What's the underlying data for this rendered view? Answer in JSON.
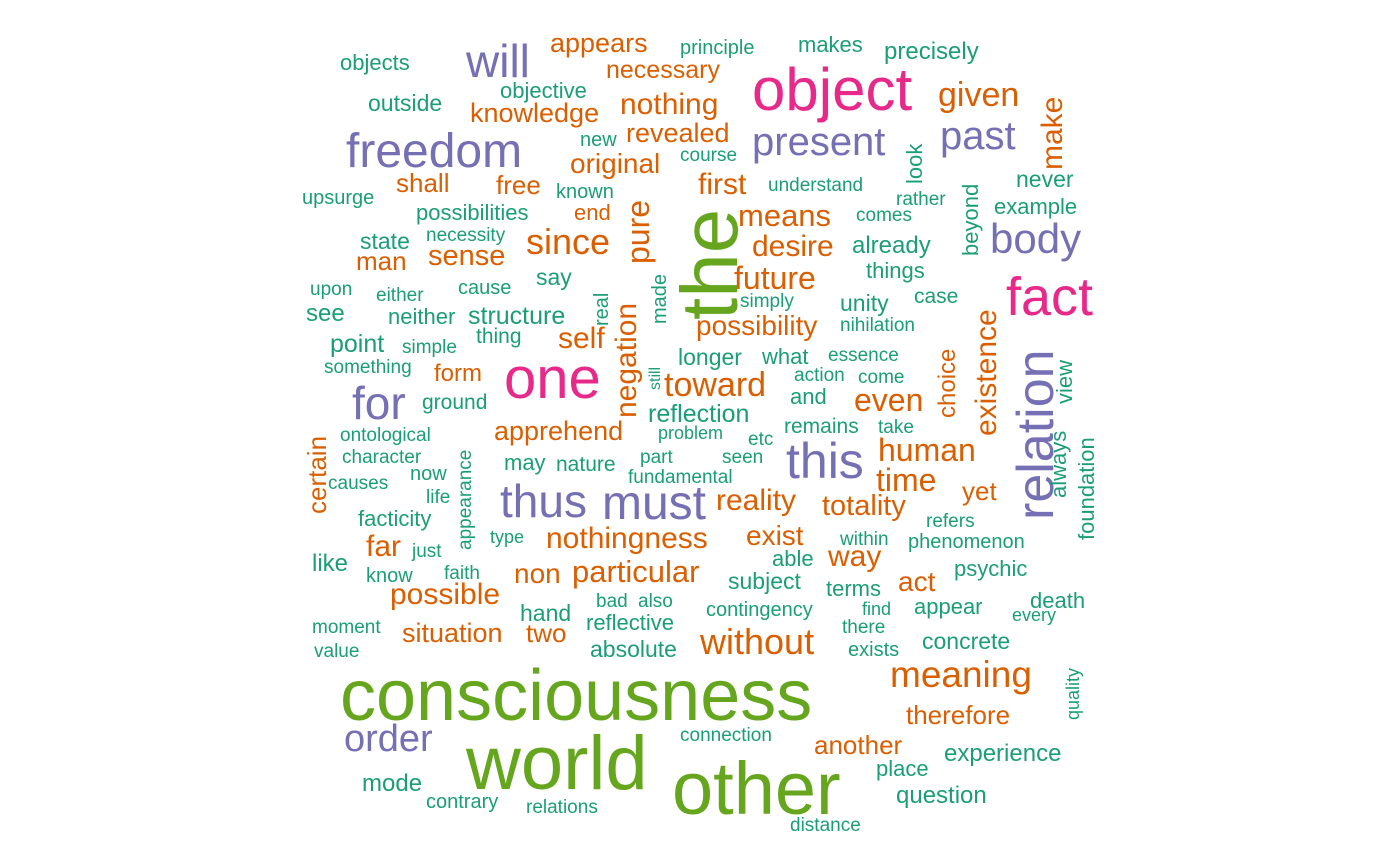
{
  "palette": {
    "teal": "#1b9e77",
    "orange": "#d95f02",
    "purple": "#7570b3",
    "pink": "#e7298a",
    "green": "#66a61e"
  },
  "words": [
    {
      "text": "consciousness",
      "color": "green"
    },
    {
      "text": "world",
      "color": "green"
    },
    {
      "text": "other",
      "color": "green"
    },
    {
      "text": "the",
      "color": "green"
    },
    {
      "text": "object",
      "color": "pink"
    },
    {
      "text": "fact",
      "color": "pink"
    },
    {
      "text": "one",
      "color": "pink"
    },
    {
      "text": "will",
      "color": "purple"
    },
    {
      "text": "freedom",
      "color": "purple"
    },
    {
      "text": "present",
      "color": "purple"
    },
    {
      "text": "past",
      "color": "purple"
    },
    {
      "text": "body",
      "color": "purple"
    },
    {
      "text": "relation",
      "color": "purple"
    },
    {
      "text": "this",
      "color": "purple"
    },
    {
      "text": "for",
      "color": "purple"
    },
    {
      "text": "thus",
      "color": "purple"
    },
    {
      "text": "must",
      "color": "purple"
    },
    {
      "text": "order",
      "color": "purple"
    },
    {
      "text": "appears",
      "color": "orange"
    },
    {
      "text": "necessary",
      "color": "orange"
    },
    {
      "text": "given",
      "color": "orange"
    },
    {
      "text": "make",
      "color": "orange"
    },
    {
      "text": "nothing",
      "color": "orange"
    },
    {
      "text": "knowledge",
      "color": "orange"
    },
    {
      "text": "revealed",
      "color": "orange"
    },
    {
      "text": "original",
      "color": "orange"
    },
    {
      "text": "shall",
      "color": "orange"
    },
    {
      "text": "free",
      "color": "orange"
    },
    {
      "text": "first",
      "color": "orange"
    },
    {
      "text": "end",
      "color": "orange"
    },
    {
      "text": "pure",
      "color": "orange"
    },
    {
      "text": "means",
      "color": "orange"
    },
    {
      "text": "since",
      "color": "orange"
    },
    {
      "text": "desire",
      "color": "orange"
    },
    {
      "text": "man",
      "color": "orange"
    },
    {
      "text": "sense",
      "color": "orange"
    },
    {
      "text": "future",
      "color": "orange"
    },
    {
      "text": "possibility",
      "color": "orange"
    },
    {
      "text": "self",
      "color": "orange"
    },
    {
      "text": "existence",
      "color": "orange"
    },
    {
      "text": "form",
      "color": "orange"
    },
    {
      "text": "negation",
      "color": "orange"
    },
    {
      "text": "toward",
      "color": "orange"
    },
    {
      "text": "even",
      "color": "orange"
    },
    {
      "text": "choice",
      "color": "orange"
    },
    {
      "text": "certain",
      "color": "orange"
    },
    {
      "text": "apprehend",
      "color": "orange"
    },
    {
      "text": "human",
      "color": "orange"
    },
    {
      "text": "time",
      "color": "orange"
    },
    {
      "text": "yet",
      "color": "orange"
    },
    {
      "text": "reality",
      "color": "orange"
    },
    {
      "text": "totality",
      "color": "orange"
    },
    {
      "text": "exist",
      "color": "orange"
    },
    {
      "text": "nothingness",
      "color": "orange"
    },
    {
      "text": "far",
      "color": "orange"
    },
    {
      "text": "way",
      "color": "orange"
    },
    {
      "text": "particular",
      "color": "orange"
    },
    {
      "text": "non",
      "color": "orange"
    },
    {
      "text": "act",
      "color": "orange"
    },
    {
      "text": "possible",
      "color": "orange"
    },
    {
      "text": "situation",
      "color": "orange"
    },
    {
      "text": "two",
      "color": "orange"
    },
    {
      "text": "without",
      "color": "orange"
    },
    {
      "text": "meaning",
      "color": "orange"
    },
    {
      "text": "therefore",
      "color": "orange"
    },
    {
      "text": "another",
      "color": "orange"
    },
    {
      "text": "objects",
      "color": "teal"
    },
    {
      "text": "principle",
      "color": "teal"
    },
    {
      "text": "makes",
      "color": "teal"
    },
    {
      "text": "precisely",
      "color": "teal"
    },
    {
      "text": "outside",
      "color": "teal"
    },
    {
      "text": "objective",
      "color": "teal"
    },
    {
      "text": "new",
      "color": "teal"
    },
    {
      "text": "course",
      "color": "teal"
    },
    {
      "text": "look",
      "color": "teal"
    },
    {
      "text": "upsurge",
      "color": "teal"
    },
    {
      "text": "known",
      "color": "teal"
    },
    {
      "text": "understand",
      "color": "teal"
    },
    {
      "text": "rather",
      "color": "teal"
    },
    {
      "text": "never",
      "color": "teal"
    },
    {
      "text": "possibilities",
      "color": "teal"
    },
    {
      "text": "comes",
      "color": "teal"
    },
    {
      "text": "beyond",
      "color": "teal"
    },
    {
      "text": "example",
      "color": "teal"
    },
    {
      "text": "state",
      "color": "teal"
    },
    {
      "text": "necessity",
      "color": "teal"
    },
    {
      "text": "already",
      "color": "teal"
    },
    {
      "text": "say",
      "color": "teal"
    },
    {
      "text": "things",
      "color": "teal"
    },
    {
      "text": "upon",
      "color": "teal"
    },
    {
      "text": "either",
      "color": "teal"
    },
    {
      "text": "cause",
      "color": "teal"
    },
    {
      "text": "real",
      "color": "teal"
    },
    {
      "text": "simply",
      "color": "teal"
    },
    {
      "text": "unity",
      "color": "teal"
    },
    {
      "text": "case",
      "color": "teal"
    },
    {
      "text": "see",
      "color": "teal"
    },
    {
      "text": "neither",
      "color": "teal"
    },
    {
      "text": "structure",
      "color": "teal"
    },
    {
      "text": "made",
      "color": "teal"
    },
    {
      "text": "nihilation",
      "color": "teal"
    },
    {
      "text": "thing",
      "color": "teal"
    },
    {
      "text": "point",
      "color": "teal"
    },
    {
      "text": "simple",
      "color": "teal"
    },
    {
      "text": "longer",
      "color": "teal"
    },
    {
      "text": "what",
      "color": "teal"
    },
    {
      "text": "essence",
      "color": "teal"
    },
    {
      "text": "something",
      "color": "teal"
    },
    {
      "text": "still",
      "color": "teal"
    },
    {
      "text": "action",
      "color": "teal"
    },
    {
      "text": "come",
      "color": "teal"
    },
    {
      "text": "view",
      "color": "teal"
    },
    {
      "text": "ground",
      "color": "teal"
    },
    {
      "text": "reflection",
      "color": "teal"
    },
    {
      "text": "and",
      "color": "teal"
    },
    {
      "text": "always",
      "color": "teal"
    },
    {
      "text": "foundation",
      "color": "teal"
    },
    {
      "text": "ontological",
      "color": "teal"
    },
    {
      "text": "appearance",
      "color": "teal"
    },
    {
      "text": "problem",
      "color": "teal"
    },
    {
      "text": "etc",
      "color": "teal"
    },
    {
      "text": "remains",
      "color": "teal"
    },
    {
      "text": "take",
      "color": "teal"
    },
    {
      "text": "character",
      "color": "teal"
    },
    {
      "text": "may",
      "color": "teal"
    },
    {
      "text": "nature",
      "color": "teal"
    },
    {
      "text": "part",
      "color": "teal"
    },
    {
      "text": "seen",
      "color": "teal"
    },
    {
      "text": "now",
      "color": "teal"
    },
    {
      "text": "causes",
      "color": "teal"
    },
    {
      "text": "fundamental",
      "color": "teal"
    },
    {
      "text": "life",
      "color": "teal"
    },
    {
      "text": "facticity",
      "color": "teal"
    },
    {
      "text": "refers",
      "color": "teal"
    },
    {
      "text": "type",
      "color": "teal"
    },
    {
      "text": "within",
      "color": "teal"
    },
    {
      "text": "phenomenon",
      "color": "teal"
    },
    {
      "text": "like",
      "color": "teal"
    },
    {
      "text": "just",
      "color": "teal"
    },
    {
      "text": "able",
      "color": "teal"
    },
    {
      "text": "know",
      "color": "teal"
    },
    {
      "text": "faith",
      "color": "teal"
    },
    {
      "text": "subject",
      "color": "teal"
    },
    {
      "text": "psychic",
      "color": "teal"
    },
    {
      "text": "terms",
      "color": "teal"
    },
    {
      "text": "bad",
      "color": "teal"
    },
    {
      "text": "also",
      "color": "teal"
    },
    {
      "text": "appear",
      "color": "teal"
    },
    {
      "text": "death",
      "color": "teal"
    },
    {
      "text": "hand",
      "color": "teal"
    },
    {
      "text": "contingency",
      "color": "teal"
    },
    {
      "text": "find",
      "color": "teal"
    },
    {
      "text": "every",
      "color": "teal"
    },
    {
      "text": "moment",
      "color": "teal"
    },
    {
      "text": "reflective",
      "color": "teal"
    },
    {
      "text": "there",
      "color": "teal"
    },
    {
      "text": "concrete",
      "color": "teal"
    },
    {
      "text": "value",
      "color": "teal"
    },
    {
      "text": "absolute",
      "color": "teal"
    },
    {
      "text": "exists",
      "color": "teal"
    },
    {
      "text": "quality",
      "color": "teal"
    },
    {
      "text": "connection",
      "color": "teal"
    },
    {
      "text": "experience",
      "color": "teal"
    },
    {
      "text": "place",
      "color": "teal"
    },
    {
      "text": "mode",
      "color": "teal"
    },
    {
      "text": "contrary",
      "color": "teal"
    },
    {
      "text": "relations",
      "color": "teal"
    },
    {
      "text": "question",
      "color": "teal"
    },
    {
      "text": "distance",
      "color": "teal"
    }
  ]
}
